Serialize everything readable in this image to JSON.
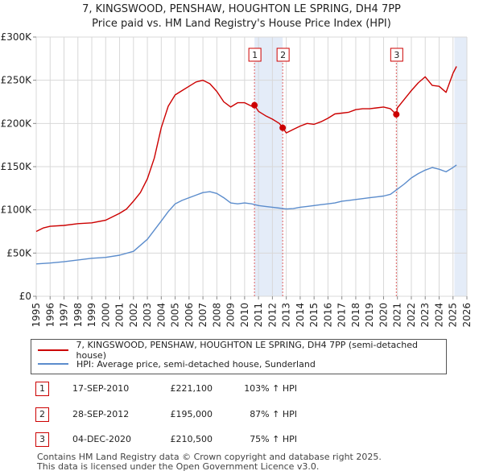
{
  "title_line1": "7, KINGSWOOD, PENSHAW, HOUGHTON LE SPRING, DH4 7PP",
  "title_line2": "Price paid vs. HM Land Registry's House Price Index (HPI)",
  "chart_data": {
    "type": "line",
    "title": "Price paid vs. HM Land Registry's House Price Index (HPI)",
    "xlim": [
      1995,
      2026
    ],
    "ylim": [
      0,
      300000
    ],
    "grid": true,
    "x_ticks": [
      "1995",
      "1996",
      "1997",
      "1998",
      "1999",
      "2000",
      "2001",
      "2002",
      "2003",
      "2004",
      "2005",
      "2006",
      "2007",
      "2008",
      "2009",
      "2010",
      "2011",
      "2012",
      "2013",
      "2014",
      "2015",
      "2016",
      "2017",
      "2018",
      "2019",
      "2020",
      "2021",
      "2022",
      "2023",
      "2024",
      "2025",
      "2026"
    ],
    "y_ticks": [
      {
        "value": 0,
        "label": "£0"
      },
      {
        "value": 50000,
        "label": "£50K"
      },
      {
        "value": 100000,
        "label": "£100K"
      },
      {
        "value": 150000,
        "label": "£150K"
      },
      {
        "value": 200000,
        "label": "£200K"
      },
      {
        "value": 250000,
        "label": "£250K"
      },
      {
        "value": 300000,
        "label": "£300K"
      }
    ],
    "shaded_periods": [
      {
        "start": 2010.71,
        "end": 2012.74
      },
      {
        "start": 2025.1,
        "end": 2026
      }
    ],
    "series": [
      {
        "name": "7, KINGSWOOD, PENSHAW, HOUGHTON LE SPRING, DH4 7PP (semi-detached house)",
        "color": "#cc0000",
        "x": [
          1995.0,
          1995.5,
          1996.0,
          1997.0,
          1998.0,
          1999.0,
          2000.0,
          2000.5,
          2001.0,
          2001.5,
          2002.0,
          2002.5,
          2003.0,
          2003.5,
          2004.0,
          2004.5,
          2005.0,
          2005.5,
          2006.0,
          2006.5,
          2007.0,
          2007.5,
          2008.0,
          2008.5,
          2009.0,
          2009.5,
          2010.0,
          2010.5,
          2010.71,
          2011.0,
          2011.5,
          2012.0,
          2012.5,
          2012.74,
          2013.0,
          2013.5,
          2014.0,
          2014.5,
          2015.0,
          2015.5,
          2016.0,
          2016.5,
          2017.0,
          2017.5,
          2018.0,
          2018.5,
          2019.0,
          2019.5,
          2020.0,
          2020.5,
          2020.92,
          2021.0,
          2021.5,
          2022.0,
          2022.5,
          2023.0,
          2023.5,
          2024.0,
          2024.5,
          2025.0,
          2025.25
        ],
        "y": [
          75000,
          79000,
          81000,
          82000,
          84000,
          85000,
          88000,
          92000,
          96000,
          101000,
          110000,
          120000,
          136000,
          160000,
          195000,
          220000,
          233000,
          238000,
          243000,
          248000,
          250000,
          246000,
          237000,
          225000,
          219000,
          224000,
          224000,
          220000,
          221100,
          214000,
          209000,
          205000,
          200000,
          195000,
          189000,
          193000,
          197000,
          200000,
          199000,
          202000,
          206000,
          211000,
          212000,
          213000,
          216000,
          217000,
          217000,
          218000,
          219000,
          217000,
          210500,
          218000,
          228000,
          238000,
          247000,
          254000,
          244000,
          243000,
          236000,
          258000,
          266000
        ]
      },
      {
        "name": "HPI: Average price, semi-detached house, Sunderland",
        "color": "#5b8ccc",
        "x": [
          1995.0,
          1996.0,
          1997.0,
          1998.0,
          1999.0,
          2000.0,
          2001.0,
          2002.0,
          2003.0,
          2004.0,
          2004.5,
          2005.0,
          2005.5,
          2006.0,
          2006.5,
          2007.0,
          2007.5,
          2008.0,
          2008.5,
          2009.0,
          2009.5,
          2010.0,
          2010.5,
          2011.0,
          2011.5,
          2012.0,
          2012.5,
          2013.0,
          2013.5,
          2014.0,
          2014.5,
          2015.0,
          2015.5,
          2016.0,
          2016.5,
          2017.0,
          2017.5,
          2018.0,
          2018.5,
          2019.0,
          2019.5,
          2020.0,
          2020.5,
          2021.0,
          2021.5,
          2022.0,
          2022.5,
          2023.0,
          2023.5,
          2024.0,
          2024.5,
          2025.0,
          2025.25
        ],
        "y": [
          37500,
          38500,
          40000,
          42000,
          44000,
          45000,
          47500,
          52000,
          66000,
          87000,
          98000,
          107000,
          111000,
          114000,
          117000,
          120000,
          121000,
          119000,
          114000,
          108000,
          107000,
          108000,
          107000,
          105000,
          104000,
          103000,
          102000,
          101000,
          101500,
          103000,
          104000,
          105000,
          106000,
          107000,
          108000,
          110000,
          111000,
          112000,
          113000,
          114000,
          115000,
          116000,
          118000,
          124000,
          130000,
          137000,
          142000,
          146000,
          149000,
          147000,
          144000,
          149000,
          152000
        ]
      }
    ],
    "sales": [
      {
        "label": "1",
        "x": 2010.71,
        "price": 221100
      },
      {
        "label": "2",
        "x": 2012.74,
        "price": 195000
      },
      {
        "label": "3",
        "x": 2020.92,
        "price": 210500
      }
    ]
  },
  "legend": {
    "property_label": "7, KINGSWOOD, PENSHAW, HOUGHTON LE SPRING, DH4 7PP (semi-detached house)",
    "property_color": "#cc0000",
    "hpi_label": "HPI: Average price, semi-detached house, Sunderland",
    "hpi_color": "#5b8ccc"
  },
  "transactions": [
    {
      "num": "1",
      "date": "17-SEP-2010",
      "price": "£221,100",
      "hpi": "103% ↑ HPI"
    },
    {
      "num": "2",
      "date": "28-SEP-2012",
      "price": "£195,000",
      "hpi": "87% ↑ HPI"
    },
    {
      "num": "3",
      "date": "04-DEC-2020",
      "price": "£210,500",
      "hpi": "75% ↑ HPI"
    }
  ],
  "footer_line1": "Contains HM Land Registry data © Crown copyright and database right 2025.",
  "footer_line2": "This data is licensed under the Open Government Licence v3.0."
}
